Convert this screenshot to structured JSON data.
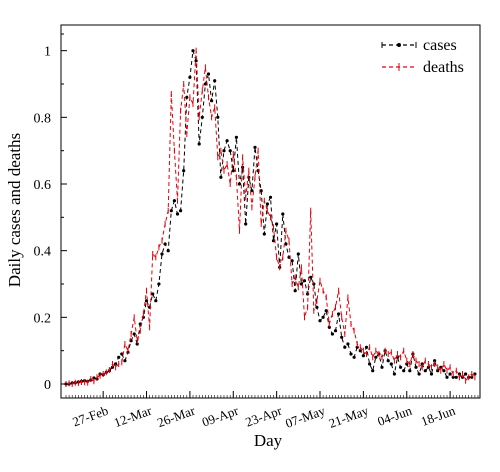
{
  "chart_data": {
    "type": "line",
    "xlabel": "Day",
    "ylabel": "Daily cases and deaths",
    "ylim": [
      0,
      1.08
    ],
    "yticks": [
      "0",
      "0.2",
      "0.4",
      "0.6",
      "0.8",
      "1"
    ],
    "start_date": "2020-02-15",
    "end_date": "2020-06-27",
    "x_tick_labels": [
      "27-Feb",
      "12-Mar",
      "26-Mar",
      "09-Apr",
      "23-Apr",
      "07-May",
      "21-May",
      "04-Jun",
      "18-Jun"
    ],
    "legend_position": "top-right",
    "grid": false,
    "series": [
      {
        "name": "cases",
        "color": "#000000",
        "style": "dashed",
        "marker": "dot",
        "values": [
          0.0,
          0.0,
          0.003,
          0.004,
          0.006,
          0.008,
          0.01,
          0.008,
          0.012,
          0.018,
          0.015,
          0.03,
          0.028,
          0.035,
          0.04,
          0.05,
          0.06,
          0.08,
          0.09,
          0.07,
          0.095,
          0.13,
          0.15,
          0.12,
          0.18,
          0.2,
          0.25,
          0.23,
          0.27,
          0.25,
          0.3,
          0.39,
          0.42,
          0.4,
          0.52,
          0.55,
          0.51,
          0.52,
          0.64,
          0.86,
          0.92,
          1.0,
          0.97,
          0.72,
          0.8,
          0.9,
          0.93,
          0.85,
          0.91,
          0.8,
          0.62,
          0.7,
          0.73,
          0.7,
          0.64,
          0.74,
          0.6,
          0.65,
          0.48,
          0.62,
          0.58,
          0.71,
          0.64,
          0.58,
          0.45,
          0.54,
          0.56,
          0.43,
          0.48,
          0.35,
          0.51,
          0.42,
          0.38,
          0.37,
          0.28,
          0.39,
          0.3,
          0.31,
          0.27,
          0.32,
          0.3,
          0.23,
          0.19,
          0.2,
          0.22,
          0.17,
          0.15,
          0.16,
          0.21,
          0.14,
          0.11,
          0.12,
          0.09,
          0.08,
          0.11,
          0.1,
          0.085,
          0.11,
          0.06,
          0.04,
          0.08,
          0.09,
          0.05,
          0.1,
          0.07,
          0.06,
          0.03,
          0.08,
          0.05,
          0.04,
          0.06,
          0.04,
          0.09,
          0.05,
          0.03,
          0.06,
          0.04,
          0.05,
          0.03,
          0.07,
          0.04,
          0.05,
          0.04,
          0.02,
          0.03,
          0.02,
          0.02,
          0.03,
          0.02,
          0.03,
          0.02,
          0.02,
          0.03
        ]
      },
      {
        "name": "deaths",
        "color": "#e8000b",
        "style": "dashed",
        "marker": "tick",
        "values": [
          0.0,
          0.002,
          0.0,
          0.004,
          0.003,
          0.006,
          0.005,
          0.004,
          0.015,
          0.008,
          0.02,
          0.025,
          0.03,
          0.035,
          0.042,
          0.06,
          0.05,
          0.06,
          0.065,
          0.12,
          0.1,
          0.15,
          0.2,
          0.13,
          0.16,
          0.21,
          0.28,
          0.17,
          0.39,
          0.38,
          0.41,
          0.43,
          0.48,
          0.52,
          0.87,
          0.7,
          0.55,
          0.82,
          0.9,
          0.75,
          0.86,
          0.84,
          1.0,
          0.8,
          0.88,
          0.95,
          0.86,
          0.8,
          0.83,
          0.68,
          0.7,
          0.64,
          0.66,
          0.6,
          0.69,
          0.62,
          0.46,
          0.68,
          0.56,
          0.64,
          0.53,
          0.62,
          0.7,
          0.48,
          0.55,
          0.52,
          0.5,
          0.47,
          0.38,
          0.35,
          0.38,
          0.46,
          0.43,
          0.3,
          0.32,
          0.29,
          0.35,
          0.2,
          0.23,
          0.52,
          0.22,
          0.25,
          0.31,
          0.28,
          0.26,
          0.18,
          0.21,
          0.23,
          0.28,
          0.2,
          0.15,
          0.26,
          0.18,
          0.16,
          0.12,
          0.11,
          0.1,
          0.09,
          0.11,
          0.08,
          0.1,
          0.09,
          0.08,
          0.1,
          0.09,
          0.095,
          0.07,
          0.09,
          0.08,
          0.1,
          0.07,
          0.06,
          0.09,
          0.07,
          0.06,
          0.05,
          0.07,
          0.06,
          0.05,
          0.06,
          0.05,
          0.04,
          0.06,
          0.04,
          0.05,
          0.03,
          0.04,
          0.02,
          0.03,
          0.01,
          0.02,
          0.03,
          0.02
        ]
      }
    ]
  }
}
